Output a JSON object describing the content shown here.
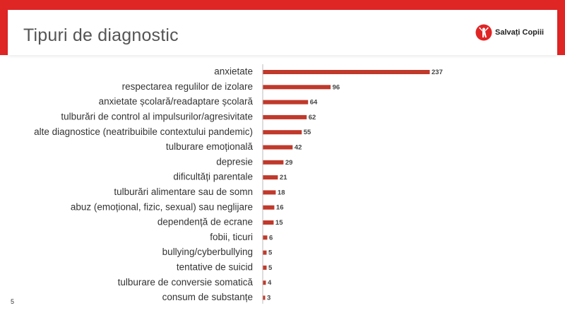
{
  "slide": {
    "title": "Tipuri de diagnostic",
    "page_number": "5",
    "logo_text": "Salvați Copiii",
    "accent_color": "#e02525"
  },
  "chart_data": {
    "type": "bar",
    "orientation": "horizontal",
    "categories": [
      "anxietate",
      "respectarea regulilor de izolare",
      "anxietate școlară/readaptare școlară",
      "tulburări de control al impulsurilor/agresivitate",
      "alte diagnostice (neatribuibile contextului pandemic)",
      "tulburare emoțională",
      "depresie",
      "dificultăți parentale",
      "tulburări alimentare sau de somn",
      "abuz (emoțional, fizic, sexual) sau neglijare",
      "dependență de ecrane",
      "fobii, ticuri",
      "bullying/cyberbullying",
      "tentative de suicid",
      "tulburare de conversie somatică",
      "consum de substanțe"
    ],
    "values": [
      237,
      96,
      64,
      62,
      55,
      42,
      29,
      21,
      18,
      16,
      15,
      6,
      5,
      5,
      4,
      3
    ],
    "bar_color": "#c0392b",
    "axis_color": "#bbbbbb",
    "data_labels": true
  }
}
